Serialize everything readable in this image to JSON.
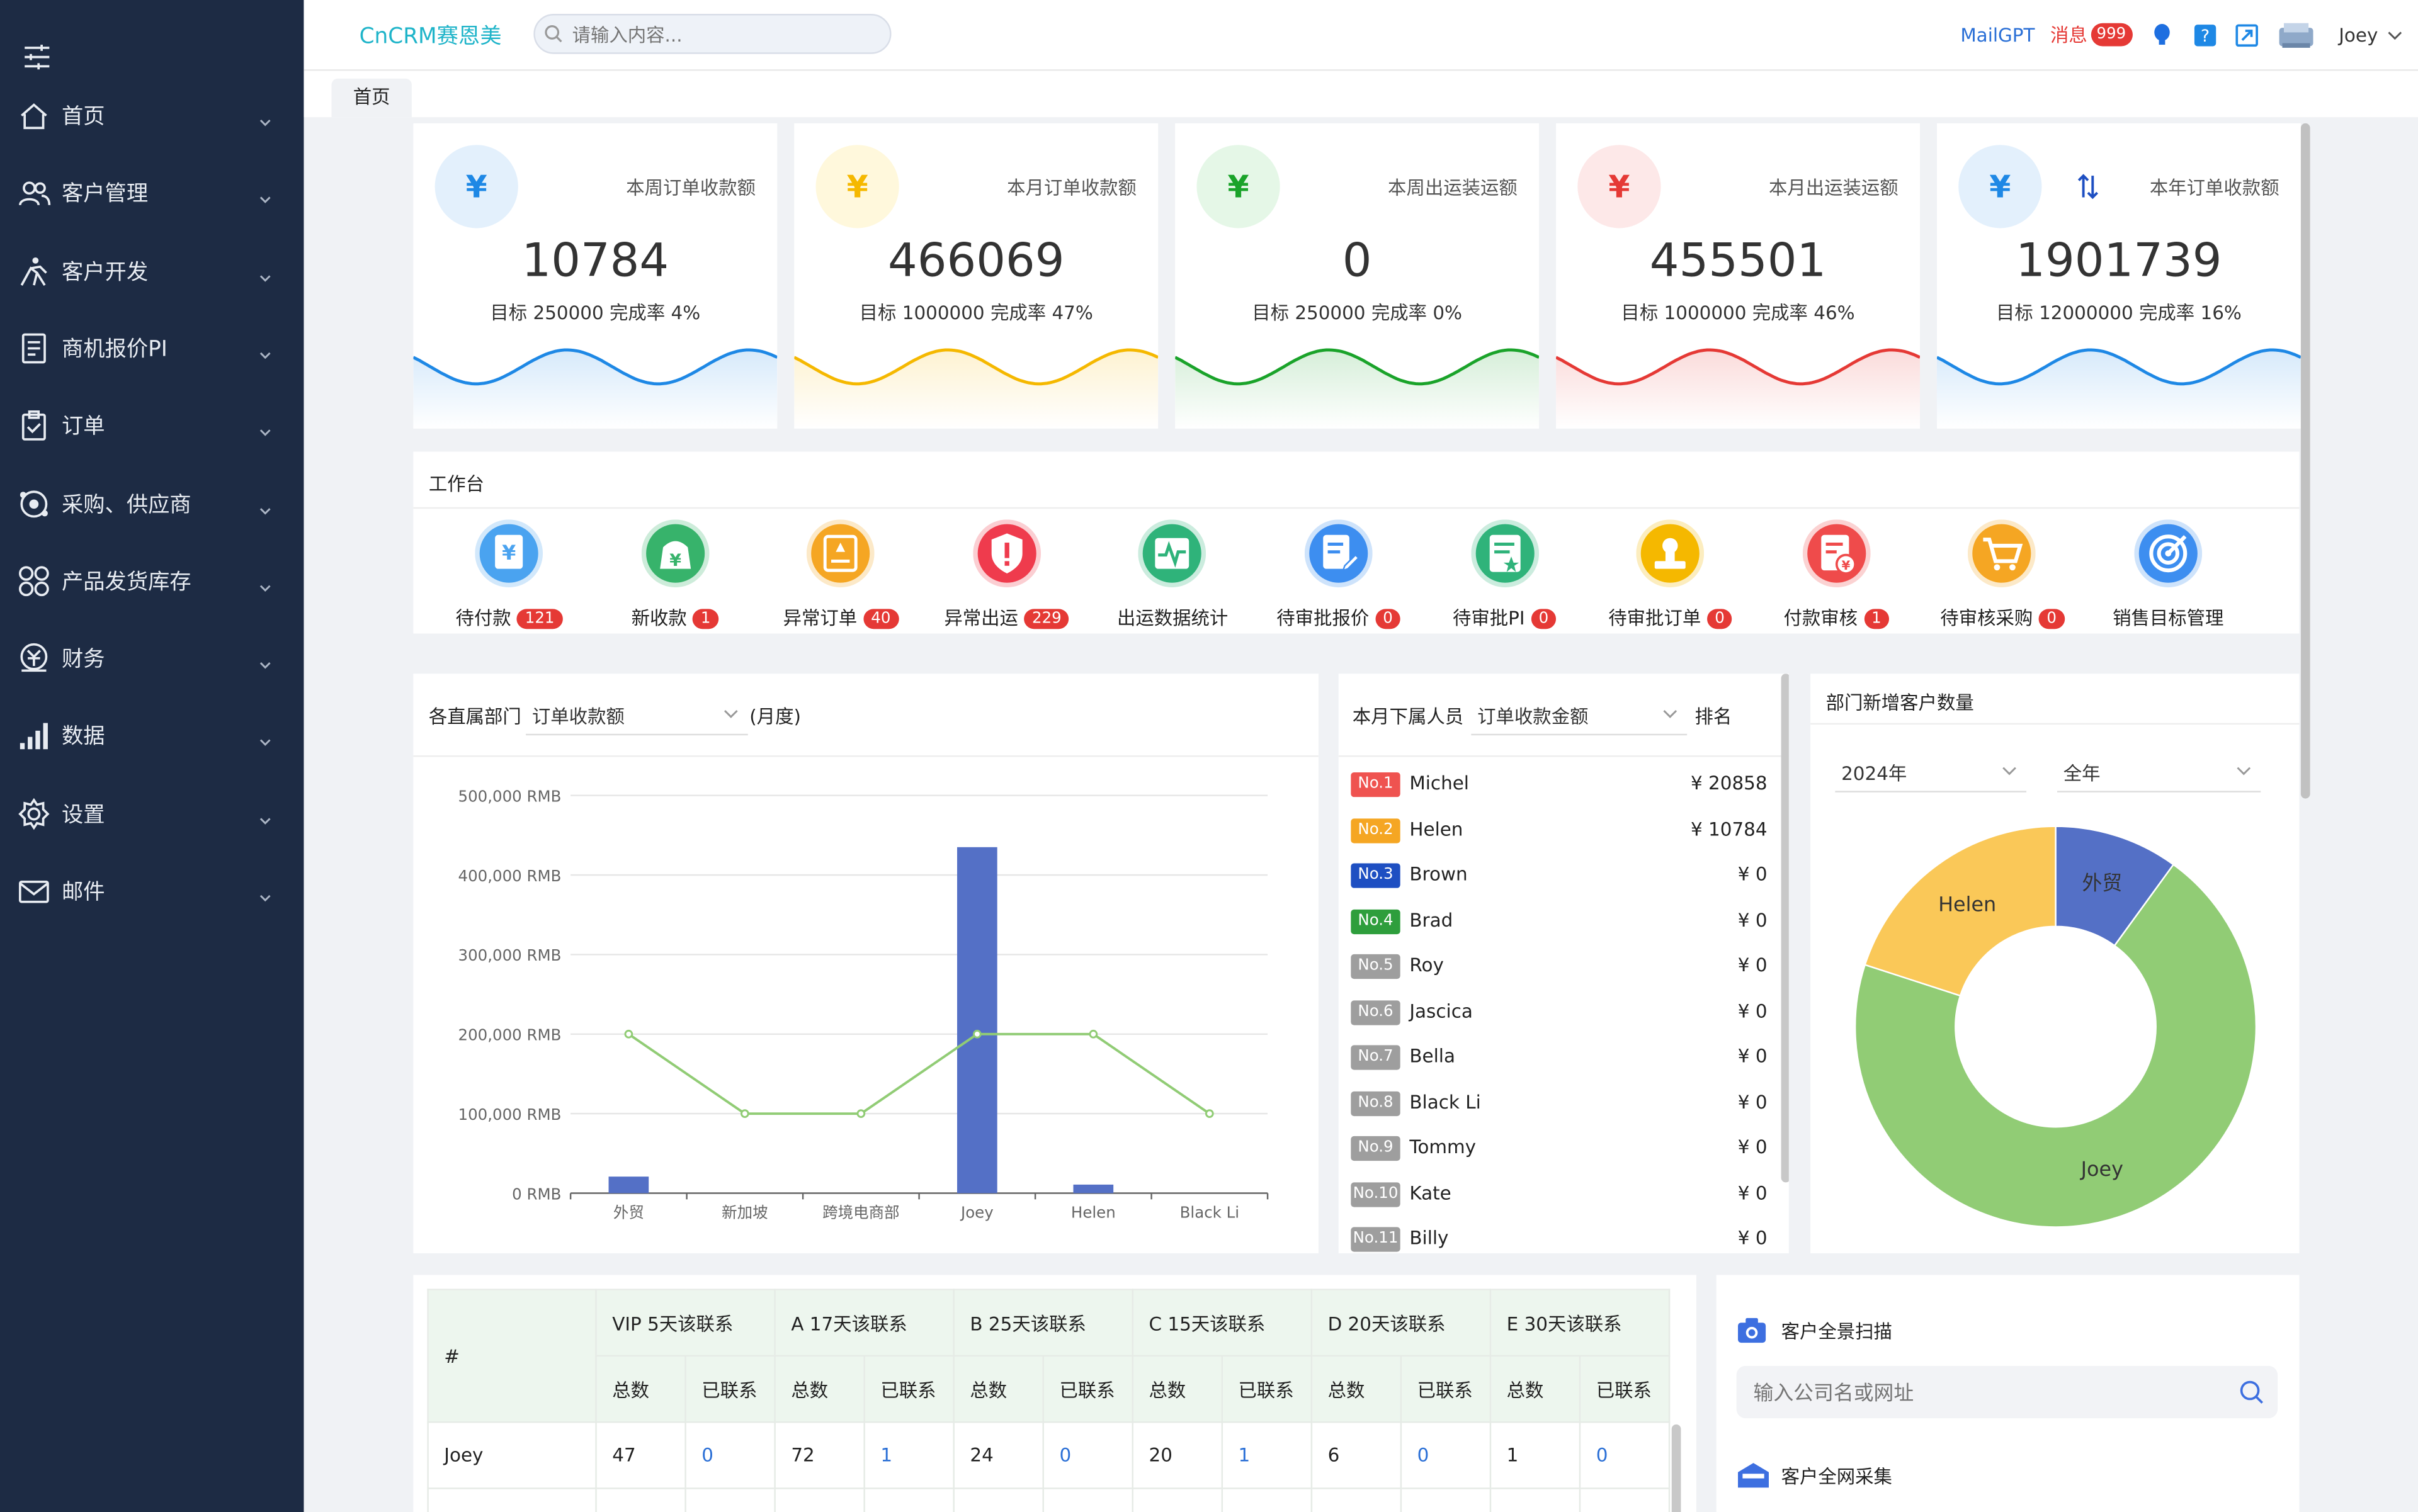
{
  "app": {
    "brand": "CnCRM赛恩美"
  },
  "search": {
    "placeholder": "请输入内容..."
  },
  "header": {
    "mailgpt": "MailGPT",
    "messages_label": "消息",
    "messages_count": "999",
    "user": "Joey"
  },
  "tabs": [
    {
      "label": "首页"
    }
  ],
  "sidebar": {
    "items": [
      {
        "label": "首页",
        "icon": "home-icon"
      },
      {
        "label": "客户管理",
        "icon": "users-icon"
      },
      {
        "label": "客户开发",
        "icon": "climb-icon"
      },
      {
        "label": "商机报价PI",
        "icon": "document-icon"
      },
      {
        "label": "订单",
        "icon": "clipboard-icon"
      },
      {
        "label": "采购、供应商",
        "icon": "target-icon"
      },
      {
        "label": "产品发货库存",
        "icon": "grid-icon"
      },
      {
        "label": "财务",
        "icon": "money-icon"
      },
      {
        "label": "数据",
        "icon": "bar-signal-icon"
      },
      {
        "label": "设置",
        "icon": "gear-icon"
      },
      {
        "label": "邮件",
        "icon": "mail-icon"
      }
    ]
  },
  "stats": [
    {
      "title": "本周订单收款额",
      "value": "10784",
      "sub": "目标 250000 完成率 4%",
      "color": "#1e88e5",
      "bg": "#e3f0fc",
      "symbol": "¥"
    },
    {
      "title": "本月订单收款额",
      "value": "466069",
      "sub": "目标 1000000 完成率 47%",
      "color": "#f5b800",
      "bg": "#fff8dc",
      "symbol": "¥"
    },
    {
      "title": "本周出运装运额",
      "value": "0",
      "sub": "目标 250000 完成率 0%",
      "color": "#1aa32a",
      "bg": "#e5f7e7",
      "symbol": "¥"
    },
    {
      "title": "本月出运装运额",
      "value": "455501",
      "sub": "目标 1000000 完成率 46%",
      "color": "#e53935",
      "bg": "#fde8e8",
      "symbol": "¥"
    },
    {
      "title": "本年订单收款额",
      "value": "1901739",
      "sub": "目标 12000000 完成率 16%",
      "color": "#1e88e5",
      "bg": "#e3f0fc",
      "symbol": "¥"
    }
  ],
  "workbench": {
    "title": "工作台",
    "items": [
      {
        "label": "待付款",
        "badge": "121",
        "color": "#4aa3f0",
        "icon": "payment-icon"
      },
      {
        "label": "新收款",
        "badge": "1",
        "color": "#37b36b",
        "icon": "money-bag-icon"
      },
      {
        "label": "异常订单",
        "badge": "40",
        "color": "#f5a623",
        "icon": "warning-order-icon"
      },
      {
        "label": "异常出运",
        "badge": "229",
        "color": "#ef3b4d",
        "icon": "shield-alert-icon"
      },
      {
        "label": "出运数据统计",
        "badge": "",
        "color": "#2fb37a",
        "icon": "pulse-chart-icon"
      },
      {
        "label": "待审批报价",
        "badge": "0",
        "color": "#3d8ef0",
        "icon": "edit-doc-icon"
      },
      {
        "label": "待审批PI",
        "badge": "0",
        "color": "#2fb37a",
        "icon": "star-doc-icon"
      },
      {
        "label": "待审批订单",
        "badge": "0",
        "color": "#f5b800",
        "icon": "stamp-icon"
      },
      {
        "label": "付款审核",
        "badge": "1",
        "color": "#ef4b4b",
        "icon": "invoice-icon"
      },
      {
        "label": "待审核采购",
        "badge": "0",
        "color": "#f5a623",
        "icon": "cart-icon"
      },
      {
        "label": "销售目标管理",
        "badge": "",
        "color": "#3d8ef0",
        "icon": "target-goal-icon"
      }
    ]
  },
  "dept_panel": {
    "title": "各直属部门",
    "select": "订单收款额",
    "suffix": "(月度)"
  },
  "chart_data": {
    "type": "bar",
    "categories": [
      "外贸",
      "新加坡",
      "跨境电商部",
      "Joey",
      "Helen",
      "Black Li"
    ],
    "series": [
      {
        "type": "bar",
        "values": [
          20858,
          0,
          0,
          435000,
          10784,
          0
        ]
      },
      {
        "type": "line",
        "values": [
          200000,
          100000,
          100000,
          200000,
          200000,
          100000
        ]
      }
    ],
    "yticks": [
      "0 RMB",
      "100,000 RMB",
      "200,000 RMB",
      "300,000 RMB",
      "400,000 RMB",
      "500,000 RMB"
    ],
    "ylim": [
      0,
      500000
    ],
    "bar_color": "#5470c6",
    "line_color": "#91cc75"
  },
  "rank_panel": {
    "title": "本月下属人员",
    "select": "订单收款金额",
    "suffix": "排名"
  },
  "ranking": [
    {
      "no": "No.1",
      "name": "Michel",
      "amount": "¥ 20858",
      "color": "#ef5350"
    },
    {
      "no": "No.2",
      "name": "Helen",
      "amount": "¥ 10784",
      "color": "#f5a623"
    },
    {
      "no": "No.3",
      "name": "Brown",
      "amount": "¥ 0",
      "color": "#1e4fc2"
    },
    {
      "no": "No.4",
      "name": "Brad",
      "amount": "¥ 0",
      "color": "#2e9e3c"
    },
    {
      "no": "No.5",
      "name": "Roy",
      "amount": "¥ 0",
      "color": "#9e9e9e"
    },
    {
      "no": "No.6",
      "name": "Jascica",
      "amount": "¥ 0",
      "color": "#9e9e9e"
    },
    {
      "no": "No.7",
      "name": "Bella",
      "amount": "¥ 0",
      "color": "#9e9e9e"
    },
    {
      "no": "No.8",
      "name": "Black Li",
      "amount": "¥ 0",
      "color": "#9e9e9e"
    },
    {
      "no": "No.9",
      "name": "Tommy",
      "amount": "¥ 0",
      "color": "#9e9e9e"
    },
    {
      "no": "No.10",
      "name": "Kate",
      "amount": "¥ 0",
      "color": "#9e9e9e"
    },
    {
      "no": "No.11",
      "name": "Billy",
      "amount": "¥ 0",
      "color": "#9e9e9e"
    }
  ],
  "pie_panel": {
    "title": "部门新增客户数量",
    "year": "2024年",
    "period": "全年",
    "slices": [
      {
        "name": "外贸",
        "value": 10,
        "color": "#5470c6"
      },
      {
        "name": "Joey",
        "value": 70,
        "color": "#91cc75"
      },
      {
        "name": "Helen",
        "value": 20,
        "color": "#fac858"
      }
    ]
  },
  "contact_table": {
    "hash": "#",
    "groups": [
      "VIP 5天该联系",
      "A 17天该联系",
      "B 25天该联系",
      "C 15天该联系",
      "D 20天该联系",
      "E 30天该联系"
    ],
    "sub_total": "总数",
    "sub_contacted": "已联系",
    "rows": [
      {
        "name": "Joey",
        "cells": [
          "47",
          "0",
          "72",
          "1",
          "24",
          "0",
          "20",
          "1",
          "6",
          "0",
          "1",
          "0"
        ]
      }
    ]
  },
  "scan_panel": {
    "scan_title": "客户全景扫描",
    "scan_placeholder": "输入公司名或网址",
    "collect_title": "客户全网采集"
  }
}
